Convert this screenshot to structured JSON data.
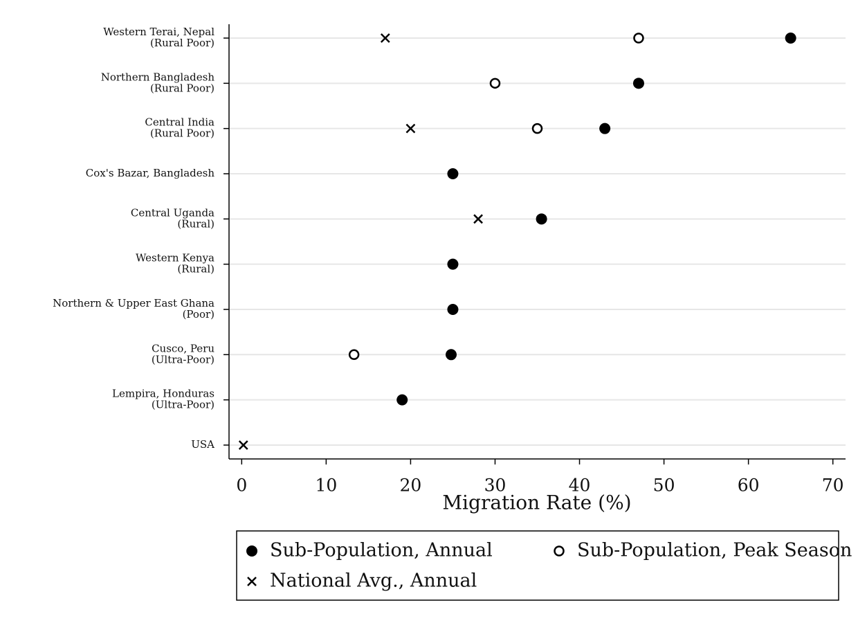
{
  "chart_data": {
    "type": "dot",
    "x_label": "Migration Rate (%)",
    "categories": [
      [
        "Western Terai, Nepal",
        "(Rural Poor)"
      ],
      [
        "Northern Bangladesh",
        "(Rural Poor)"
      ],
      [
        "Central India",
        "(Rural Poor)"
      ],
      [
        "Cox's Bazar, Bangladesh"
      ],
      [
        "Central Uganda",
        "(Rural)"
      ],
      [
        "Western Kenya",
        "(Rural)"
      ],
      [
        "Northern & Upper East Ghana",
        "(Poor)"
      ],
      [
        "Cusco, Peru",
        "(Ultra-Poor)"
      ],
      [
        "Lempira, Honduras",
        "(Ultra-Poor)"
      ],
      [
        "USA"
      ]
    ],
    "series": [
      {
        "name": "Sub-Population, Annual",
        "marker": "filled",
        "color": "#000000",
        "values": [
          65,
          47,
          43,
          25,
          35.5,
          25,
          25,
          24.8,
          19,
          null
        ]
      },
      {
        "name": "Sub-Population, Peak Season",
        "marker": "open",
        "color": "#000000",
        "values": [
          47,
          30,
          35,
          null,
          null,
          null,
          null,
          13.3,
          null,
          null
        ]
      },
      {
        "name": "National Avg., Annual",
        "marker": "cross",
        "color": "#000000",
        "values": [
          17,
          null,
          20,
          null,
          28,
          null,
          null,
          null,
          null,
          0.2
        ]
      }
    ],
    "xlim": [
      -1.5,
      71.5
    ],
    "xticks": [
      0,
      10,
      20,
      30,
      40,
      50,
      60,
      70
    ],
    "grid": true
  }
}
